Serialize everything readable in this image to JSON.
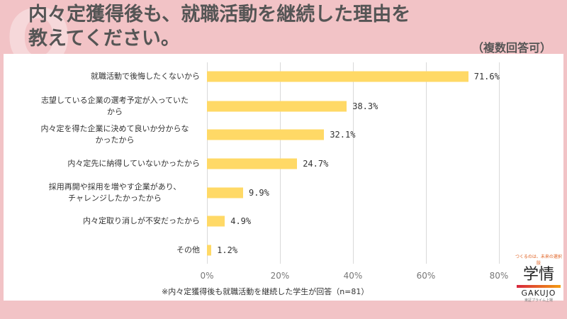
{
  "title_lines": [
    "内々定獲得後も、就職活動を継続した理由を",
    "教えてください。"
  ],
  "multi_answer_note": "（複数回答可）",
  "footnote": "※内々定獲得後も就職活動を継続した学生が回答（n=81）",
  "logo": {
    "tagline": "つくるのは、未来の選択肢",
    "name": "学情",
    "latin": "GAKUJO",
    "sub": "東証プライム上場"
  },
  "colors": {
    "bar": "#ffd966",
    "background": "#f2c3c6"
  },
  "chart_data": {
    "type": "bar",
    "orientation": "horizontal",
    "categories": [
      "就職活動で後悔したくないから",
      "志望している企業の選考予定が入っていたから",
      "内々定を得た企業に決めて良いか分からなかったから",
      "内々定先に納得していないかったから",
      "採用再開や採用を増やす企業があり、チャレンジしたかったから",
      "内々定取り消しが不安だったから",
      "その他"
    ],
    "category_lines": [
      [
        "就職活動で後悔したくないから"
      ],
      [
        "志望している企業の選考予定が入っていた",
        "から"
      ],
      [
        "内々定を得た企業に決めて良いか分からな",
        "かったから"
      ],
      [
        "内々定先に納得していないかったから"
      ],
      [
        "採用再開や採用を増やす企業があり、",
        "チャレンジしたかったから"
      ],
      [
        "内々定取り消しが不安だったから"
      ],
      [
        "その他"
      ]
    ],
    "values": [
      71.6,
      38.3,
      32.1,
      24.7,
      9.9,
      4.9,
      1.2
    ],
    "data_labels": [
      "71.6%",
      "38.3%",
      "32.1%",
      "24.7%",
      "9.9%",
      "4.9%",
      "1.2%"
    ],
    "xlim": [
      0,
      80
    ],
    "xticks": [
      "0%",
      "20%",
      "40%",
      "60%",
      "80%"
    ],
    "grid": true
  }
}
